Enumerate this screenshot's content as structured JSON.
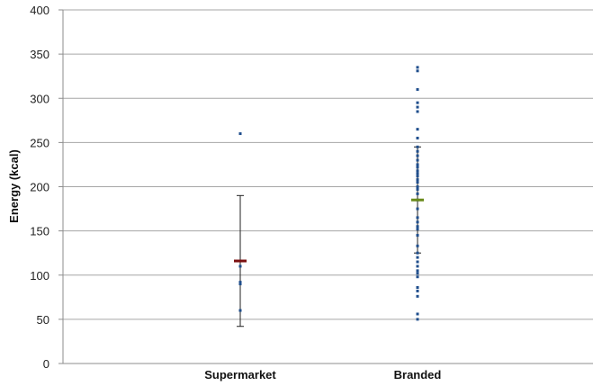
{
  "chart_data": {
    "type": "scatter",
    "title": "",
    "xlabel": "",
    "ylabel": "Energy (kcal)",
    "ylim": [
      0,
      400
    ],
    "yticks": [
      0,
      50,
      100,
      150,
      200,
      250,
      300,
      350,
      400
    ],
    "yticks_text": [
      "0",
      "50",
      "100",
      "150",
      "200",
      "250",
      "300",
      "350",
      "400"
    ],
    "grid": "horizontal",
    "categories": [
      "Supermarket",
      "Branded"
    ],
    "series": [
      {
        "category": "Supermarket",
        "points": [
          260,
          110,
          92,
          90,
          60
        ],
        "mean": 116,
        "error_bar": [
          42,
          190
        ],
        "mean_color": "#7b1010"
      },
      {
        "category": "Branded",
        "points": [
          335,
          331,
          310,
          295,
          290,
          285,
          265,
          255,
          245,
          240,
          235,
          230,
          225,
          222,
          218,
          215,
          212,
          208,
          205,
          200,
          197,
          192,
          185,
          175,
          165,
          160,
          155,
          152,
          145,
          133,
          125,
          120,
          115,
          110,
          105,
          102,
          98,
          86,
          82,
          76,
          56,
          50
        ],
        "mean": 185,
        "error_bar": [
          125,
          245
        ],
        "mean_color": "#6a8a1a"
      }
    ],
    "point_color": "#1f4e8c"
  }
}
